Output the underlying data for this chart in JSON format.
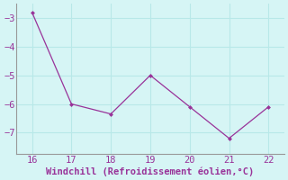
{
  "x": [
    16,
    17,
    18,
    19,
    20,
    21,
    22
  ],
  "y": [
    -2.8,
    -6.0,
    -6.35,
    -5.0,
    -6.1,
    -7.2,
    -6.1
  ],
  "line_color": "#993399",
  "marker": "D",
  "marker_size": 2.5,
  "xlabel": "Windchill (Refroidissement éolien,°C)",
  "xlabel_color": "#993399",
  "bg_color": "#d6f5f5",
  "grid_color": "#b8e8e8",
  "tick_color": "#993399",
  "spine_color": "#999999",
  "ylim": [
    -7.75,
    -2.5
  ],
  "xlim": [
    15.6,
    22.4
  ],
  "yticks": [
    -7,
    -6,
    -5,
    -4,
    -3
  ],
  "xticks": [
    16,
    17,
    18,
    19,
    20,
    21,
    22
  ],
  "tick_fontsize": 7.5,
  "xlabel_fontsize": 7.5
}
